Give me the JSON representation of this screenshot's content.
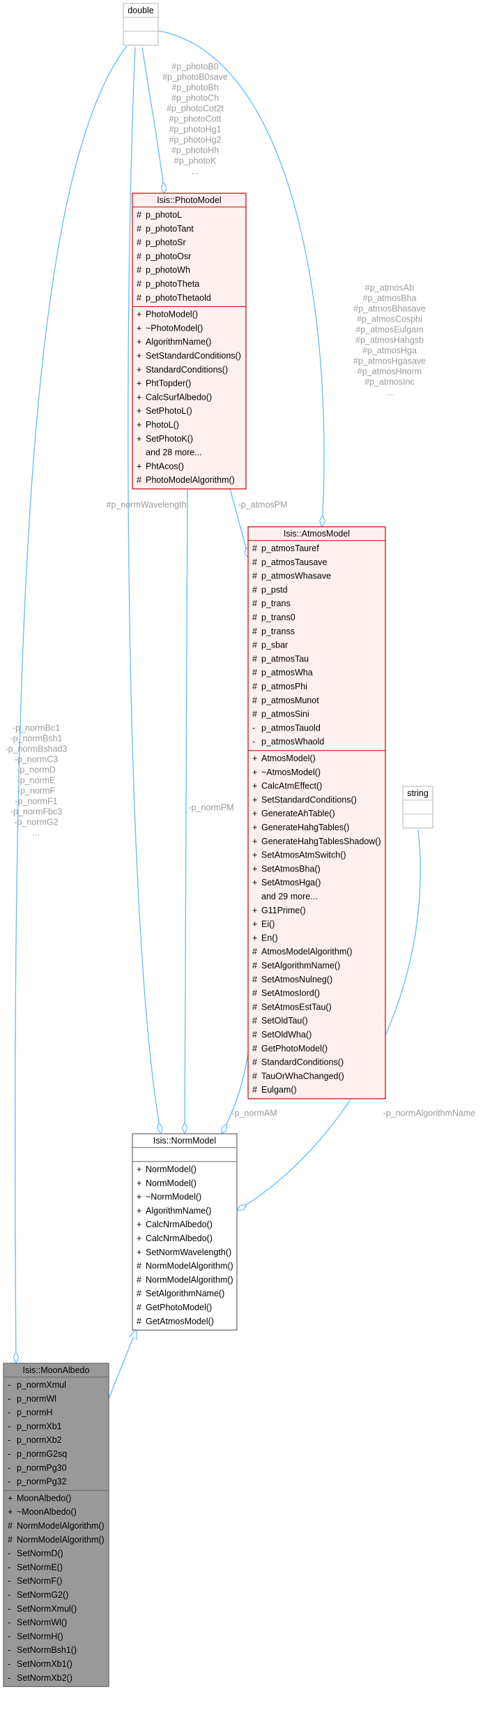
{
  "nodes": [
    {
      "title": "double",
      "fill": "#ffffff",
      "stroke": "#bfbfbf",
      "attributes": [],
      "methods": []
    },
    {
      "title": "Isis::PhotoModel",
      "fill": "#fff0f0",
      "stroke": "#cc0000",
      "attributes": [
        {
          "vis": "#",
          "name": "p_photoL"
        },
        {
          "vis": "#",
          "name": "p_photoTant"
        },
        {
          "vis": "#",
          "name": "p_photoSr"
        },
        {
          "vis": "#",
          "name": "p_photoOsr"
        },
        {
          "vis": "#",
          "name": "p_photoWh"
        },
        {
          "vis": "#",
          "name": "p_photoTheta"
        },
        {
          "vis": "#",
          "name": "p_photoThetaold"
        }
      ],
      "methods": [
        {
          "vis": "+",
          "name": "PhotoModel()"
        },
        {
          "vis": "+",
          "name": "~PhotoModel()"
        },
        {
          "vis": "+",
          "name": "AlgorithmName()"
        },
        {
          "vis": "+",
          "name": "SetStandardConditions()"
        },
        {
          "vis": "+",
          "name": "StandardConditions()"
        },
        {
          "vis": "+",
          "name": "PhtTopder()"
        },
        {
          "vis": "+",
          "name": "CalcSurfAlbedo()"
        },
        {
          "vis": "+",
          "name": "SetPhotoL()"
        },
        {
          "vis": "+",
          "name": "PhotoL()"
        },
        {
          "vis": "+",
          "name": "SetPhotoK()"
        },
        {
          "name": "and 28 more..."
        },
        {
          "vis": "+",
          "name": "PhtAcos()"
        },
        {
          "vis": "#",
          "name": "PhotoModelAlgorithm()"
        }
      ]
    },
    {
      "title": "Isis::AtmosModel",
      "fill": "#fff0f0",
      "stroke": "#cc0000",
      "attributes": [
        {
          "vis": "#",
          "name": "p_atmosTauref"
        },
        {
          "vis": "#",
          "name": "p_atmosTausave"
        },
        {
          "vis": "#",
          "name": "p_atmosWhasave"
        },
        {
          "vis": "#",
          "name": "p_pstd"
        },
        {
          "vis": "#",
          "name": "p_trans"
        },
        {
          "vis": "#",
          "name": "p_trans0"
        },
        {
          "vis": "#",
          "name": "p_transs"
        },
        {
          "vis": "#",
          "name": "p_sbar"
        },
        {
          "vis": "#",
          "name": "p_atmosTau"
        },
        {
          "vis": "#",
          "name": "p_atmosWha"
        },
        {
          "vis": "#",
          "name": "p_atmosPhi"
        },
        {
          "vis": "#",
          "name": "p_atmosMunot"
        },
        {
          "vis": "#",
          "name": "p_atmosSini"
        },
        {
          "vis": "-",
          "name": "p_atmosTauold"
        },
        {
          "vis": "-",
          "name": "p_atmosWhaold"
        }
      ],
      "methods": [
        {
          "vis": "+",
          "name": "AtmosModel()"
        },
        {
          "vis": "+",
          "name": "~AtmosModel()"
        },
        {
          "vis": "+",
          "name": "CalcAtmEffect()"
        },
        {
          "vis": "+",
          "name": "SetStandardConditions()"
        },
        {
          "vis": "+",
          "name": "GenerateAhTable()"
        },
        {
          "vis": "+",
          "name": "GenerateHahgTables()"
        },
        {
          "vis": "+",
          "name": "GenerateHahgTablesShadow()"
        },
        {
          "vis": "+",
          "name": "SetAtmosAtmSwitch()"
        },
        {
          "vis": "+",
          "name": "SetAtmosBha()"
        },
        {
          "vis": "+",
          "name": "SetAtmosHga()"
        },
        {
          "name": "and 29 more..."
        },
        {
          "vis": "+",
          "name": "G11Prime()"
        },
        {
          "vis": "+",
          "name": "Ei()"
        },
        {
          "vis": "+",
          "name": "En()"
        },
        {
          "vis": "#",
          "name": "AtmosModelAlgorithm()"
        },
        {
          "vis": "#",
          "name": "SetAlgorithmName()"
        },
        {
          "vis": "#",
          "name": "SetAtmosNulneg()"
        },
        {
          "vis": "#",
          "name": "SetAtmosIord()"
        },
        {
          "vis": "#",
          "name": "SetAtmosEstTau()"
        },
        {
          "vis": "#",
          "name": "SetOldTau()"
        },
        {
          "vis": "#",
          "name": "SetOldWha()"
        },
        {
          "vis": "#",
          "name": "GetPhotoModel()"
        },
        {
          "vis": "#",
          "name": "StandardConditions()"
        },
        {
          "vis": "#",
          "name": "TauOrWhaChanged()"
        },
        {
          "vis": "#",
          "name": "Eulgam()"
        }
      ]
    },
    {
      "title": "string",
      "fill": "#ffffff",
      "stroke": "#bfbfbf",
      "attributes": [],
      "methods": []
    },
    {
      "title": "Isis::NormModel",
      "fill": "#ffffff",
      "stroke": "#666666",
      "attributes": [],
      "methods": [
        {
          "vis": "+",
          "name": "NormModel()"
        },
        {
          "vis": "+",
          "name": "NormModel()"
        },
        {
          "vis": "+",
          "name": "~NormModel()"
        },
        {
          "vis": "+",
          "name": "AlgorithmName()"
        },
        {
          "vis": "+",
          "name": "CalcNrmAlbedo()"
        },
        {
          "vis": "+",
          "name": "CalcNrmAlbedo()"
        },
        {
          "vis": "+",
          "name": "SetNormWavelength()"
        },
        {
          "vis": "#",
          "name": "NormModelAlgorithm()"
        },
        {
          "vis": "#",
          "name": "NormModelAlgorithm()"
        },
        {
          "vis": "#",
          "name": "SetAlgorithmName()"
        },
        {
          "vis": "#",
          "name": "GetPhotoModel()"
        },
        {
          "vis": "#",
          "name": "GetAtmosModel()"
        }
      ]
    },
    {
      "title": "Isis::MoonAlbedo",
      "fill": "#999999",
      "stroke": "#666666",
      "attributes": [
        {
          "vis": "-",
          "name": "p_normXmul"
        },
        {
          "vis": "-",
          "name": "p_normWl"
        },
        {
          "vis": "-",
          "name": "p_normH"
        },
        {
          "vis": "-",
          "name": "p_normXb1"
        },
        {
          "vis": "-",
          "name": "p_normXb2"
        },
        {
          "vis": "-",
          "name": "p_normG2sq"
        },
        {
          "vis": "-",
          "name": "p_normPg30"
        },
        {
          "vis": "-",
          "name": "p_normPg32"
        }
      ],
      "methods": [
        {
          "vis": "+",
          "name": "MoonAlbedo()"
        },
        {
          "vis": "+",
          "name": "~MoonAlbedo()"
        },
        {
          "vis": "#",
          "name": "NormModelAlgorithm()"
        },
        {
          "vis": "#",
          "name": "NormModelAlgorithm()"
        },
        {
          "vis": "-",
          "name": "SetNormD()"
        },
        {
          "vis": "-",
          "name": "SetNormE()"
        },
        {
          "vis": "-",
          "name": "SetNormF()"
        },
        {
          "vis": "-",
          "name": "SetNormG2()"
        },
        {
          "vis": "-",
          "name": "SetNormXmul()"
        },
        {
          "vis": "-",
          "name": "SetNormWl()"
        },
        {
          "vis": "-",
          "name": "SetNormH()"
        },
        {
          "vis": "-",
          "name": "SetNormBsh1()"
        },
        {
          "vis": "-",
          "name": "SetNormXb1()"
        },
        {
          "vis": "-",
          "name": "SetNormXb2()"
        }
      ]
    }
  ],
  "edges": [
    {
      "labels": [
        "#p_photoB0",
        "#p_photoB0save",
        "#p_photoBh",
        "#p_photoCh",
        "#p_photoCot2t",
        "#p_photoCott",
        "#p_photoHg1",
        "#p_photoHg2",
        "#p_photoHh",
        "#p_photoK",
        "..."
      ]
    },
    {
      "labels": [
        "#p_atmosAb",
        "#p_atmosBha",
        "#p_atmosBhasave",
        "#p_atmosCosphi",
        "#p_atmosEulgam",
        "#p_atmosHahgsb",
        "#p_atmosHga",
        "#p_atmosHgasave",
        "#p_atmosHnorm",
        "#p_atmosInc",
        "..."
      ]
    },
    {
      "labels": [
        "-p_normBc1",
        "-p_normBsh1",
        "-p_normBshad3",
        "-p_normC3",
        "-p_normD",
        "-p_normE",
        "-p_normF",
        "-p_normF1",
        "-p_normFbc3",
        "-p_normG2",
        "..."
      ]
    },
    {
      "labels": [
        "#p_normWavelength"
      ]
    },
    {
      "labels": [
        "-p_normPM"
      ]
    },
    {
      "labels": [
        "-p_atmosPM"
      ]
    },
    {
      "labels": [
        "-p_normAM"
      ]
    },
    {
      "labels": [
        "-p_normAlgorithmName"
      ]
    }
  ]
}
